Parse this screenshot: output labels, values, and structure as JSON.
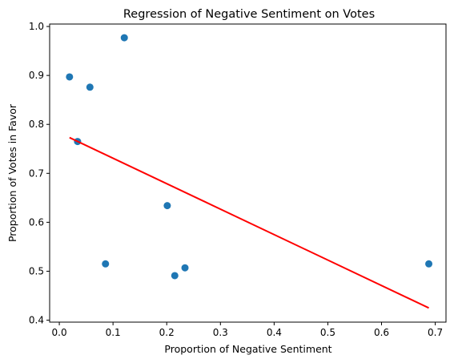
{
  "chart_data": {
    "type": "scatter",
    "title": "Regression of Negative Sentiment on Votes",
    "xlabel": "Proportion of Negative Sentiment",
    "ylabel": "Proportion of Votes in Favor",
    "xlim": [
      -0.018,
      0.72
    ],
    "ylim": [
      0.396,
      1.005
    ],
    "x_ticks": [
      0.0,
      0.1,
      0.2,
      0.3,
      0.4,
      0.5,
      0.6,
      0.7
    ],
    "x_tick_labels": [
      "0.0",
      "0.1",
      "0.2",
      "0.3",
      "0.4",
      "0.5",
      "0.6",
      "0.7"
    ],
    "y_ticks": [
      0.4,
      0.5,
      0.6,
      0.7,
      0.8,
      0.9,
      1.0
    ],
    "y_tick_labels": [
      "0.4",
      "0.5",
      "0.6",
      "0.7",
      "0.8",
      "0.9",
      "1.0"
    ],
    "grid": false,
    "series": [
      {
        "kind": "scatter",
        "color": "#1f77b4",
        "x": [
          0.019,
          0.034,
          0.057,
          0.086,
          0.121,
          0.201,
          0.215,
          0.234,
          0.688
        ],
        "y": [
          0.897,
          0.765,
          0.876,
          0.515,
          0.977,
          0.634,
          0.491,
          0.507,
          0.515
        ]
      },
      {
        "kind": "line",
        "color": "#ff0000",
        "x": [
          0.019,
          0.688
        ],
        "y": [
          0.773,
          0.425
        ]
      }
    ]
  }
}
